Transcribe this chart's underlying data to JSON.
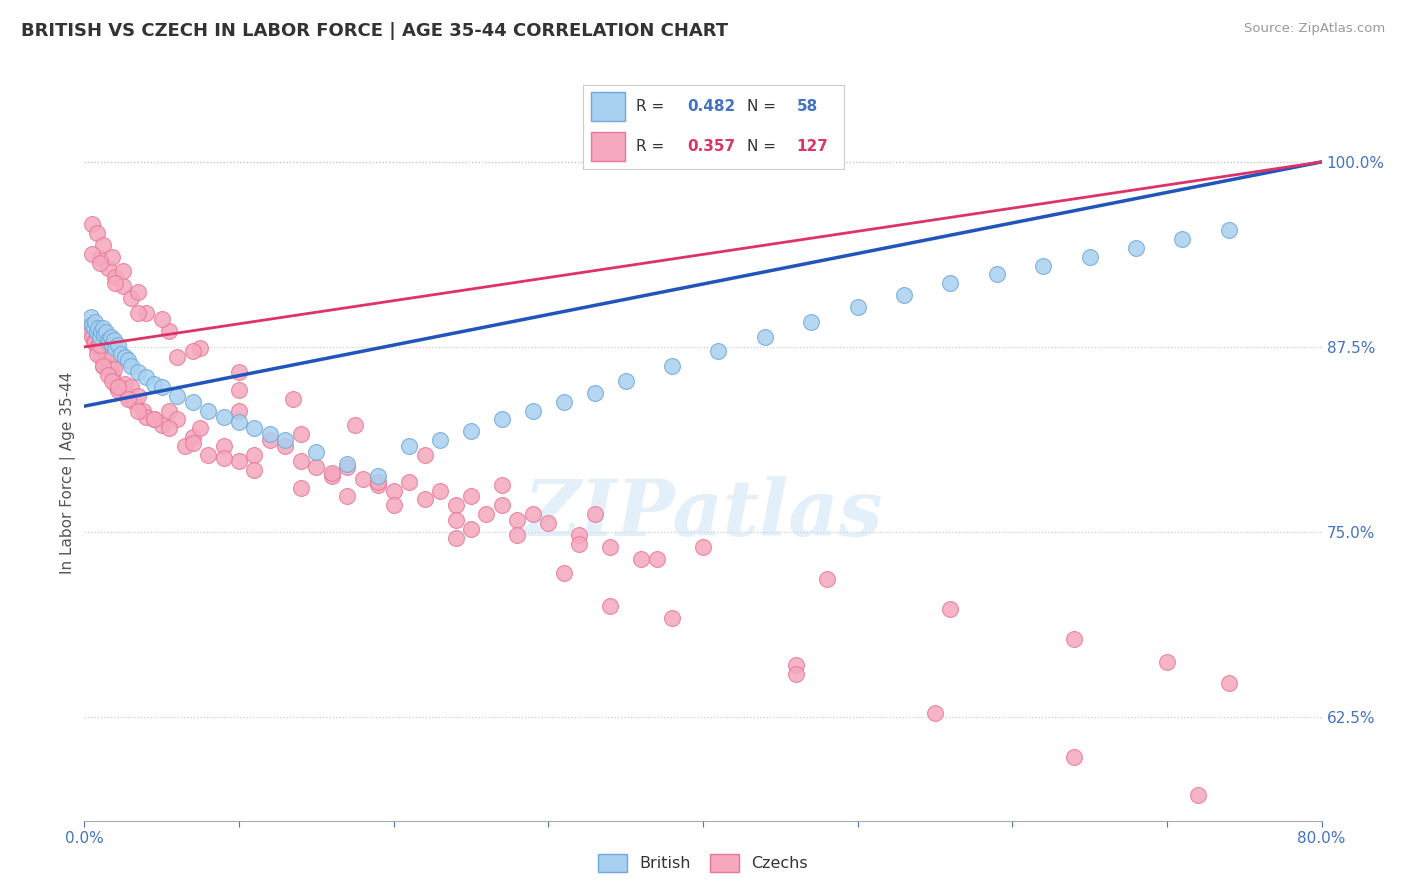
{
  "title": "BRITISH VS CZECH IN LABOR FORCE | AGE 35-44 CORRELATION CHART",
  "source": "Source: ZipAtlas.com",
  "ylabel": "In Labor Force | Age 35-44",
  "xlim": [
    0.0,
    0.8
  ],
  "ylim": [
    0.555,
    1.025
  ],
  "yticks": [
    0.625,
    0.75,
    0.875,
    1.0
  ],
  "yticklabels": [
    "62.5%",
    "75.0%",
    "87.5%",
    "100.0%"
  ],
  "british_color": "#a8d0f0",
  "czech_color": "#f5a8be",
  "british_edge": "#70a8d8",
  "czech_edge": "#e87898",
  "trend_british_color": "#2255bb",
  "trend_czech_color": "#dd3366",
  "watermark": "ZIPatlas",
  "brit_x": [
    0.004,
    0.005,
    0.006,
    0.007,
    0.008,
    0.009,
    0.01,
    0.011,
    0.012,
    0.013,
    0.014,
    0.015,
    0.016,
    0.017,
    0.018,
    0.019,
    0.02,
    0.022,
    0.024,
    0.026,
    0.028,
    0.03,
    0.035,
    0.04,
    0.045,
    0.05,
    0.06,
    0.07,
    0.08,
    0.09,
    0.1,
    0.11,
    0.12,
    0.13,
    0.15,
    0.17,
    0.19,
    0.21,
    0.23,
    0.25,
    0.27,
    0.29,
    0.31,
    0.33,
    0.35,
    0.38,
    0.41,
    0.44,
    0.47,
    0.5,
    0.53,
    0.56,
    0.59,
    0.62,
    0.65,
    0.68,
    0.71,
    0.74
  ],
  "brit_y": [
    0.895,
    0.89,
    0.888,
    0.892,
    0.885,
    0.888,
    0.882,
    0.886,
    0.888,
    0.883,
    0.885,
    0.88,
    0.878,
    0.882,
    0.876,
    0.88,
    0.874,
    0.876,
    0.87,
    0.868,
    0.866,
    0.862,
    0.858,
    0.855,
    0.85,
    0.848,
    0.842,
    0.838,
    0.832,
    0.828,
    0.824,
    0.82,
    0.816,
    0.812,
    0.804,
    0.796,
    0.788,
    0.808,
    0.812,
    0.818,
    0.826,
    0.832,
    0.838,
    0.844,
    0.852,
    0.862,
    0.872,
    0.882,
    0.892,
    0.902,
    0.91,
    0.918,
    0.924,
    0.93,
    0.936,
    0.942,
    0.948,
    0.954
  ],
  "czech_x": [
    0.003,
    0.004,
    0.005,
    0.006,
    0.007,
    0.008,
    0.009,
    0.01,
    0.011,
    0.012,
    0.013,
    0.014,
    0.015,
    0.016,
    0.017,
    0.018,
    0.019,
    0.02,
    0.022,
    0.024,
    0.026,
    0.028,
    0.03,
    0.032,
    0.035,
    0.038,
    0.04,
    0.045,
    0.05,
    0.055,
    0.06,
    0.065,
    0.07,
    0.075,
    0.08,
    0.09,
    0.1,
    0.11,
    0.12,
    0.13,
    0.14,
    0.15,
    0.16,
    0.17,
    0.18,
    0.19,
    0.2,
    0.21,
    0.22,
    0.23,
    0.24,
    0.25,
    0.26,
    0.27,
    0.28,
    0.29,
    0.3,
    0.32,
    0.34,
    0.36,
    0.008,
    0.01,
    0.012,
    0.015,
    0.018,
    0.022,
    0.028,
    0.035,
    0.045,
    0.055,
    0.07,
    0.09,
    0.11,
    0.14,
    0.17,
    0.2,
    0.24,
    0.28,
    0.32,
    0.37,
    0.01,
    0.015,
    0.02,
    0.025,
    0.03,
    0.04,
    0.055,
    0.075,
    0.1,
    0.135,
    0.175,
    0.22,
    0.27,
    0.33,
    0.4,
    0.48,
    0.56,
    0.64,
    0.7,
    0.74,
    0.005,
    0.008,
    0.012,
    0.018,
    0.025,
    0.035,
    0.05,
    0.07,
    0.1,
    0.14,
    0.19,
    0.25,
    0.31,
    0.38,
    0.46,
    0.55,
    0.64,
    0.72,
    0.005,
    0.01,
    0.02,
    0.035,
    0.06,
    0.1,
    0.16,
    0.24,
    0.34,
    0.46
  ],
  "czech_y": [
    0.89,
    0.885,
    0.882,
    0.878,
    0.878,
    0.874,
    0.876,
    0.88,
    0.868,
    0.862,
    0.872,
    0.868,
    0.862,
    0.866,
    0.86,
    0.856,
    0.86,
    0.85,
    0.846,
    0.848,
    0.85,
    0.842,
    0.848,
    0.838,
    0.842,
    0.832,
    0.828,
    0.826,
    0.822,
    0.832,
    0.826,
    0.808,
    0.814,
    0.82,
    0.802,
    0.808,
    0.798,
    0.802,
    0.812,
    0.808,
    0.798,
    0.794,
    0.788,
    0.794,
    0.786,
    0.782,
    0.778,
    0.784,
    0.772,
    0.778,
    0.768,
    0.774,
    0.762,
    0.768,
    0.758,
    0.762,
    0.756,
    0.748,
    0.74,
    0.732,
    0.87,
    0.876,
    0.862,
    0.856,
    0.852,
    0.848,
    0.84,
    0.832,
    0.826,
    0.82,
    0.81,
    0.8,
    0.792,
    0.78,
    0.774,
    0.768,
    0.758,
    0.748,
    0.742,
    0.732,
    0.935,
    0.928,
    0.922,
    0.916,
    0.908,
    0.898,
    0.886,
    0.874,
    0.858,
    0.84,
    0.822,
    0.802,
    0.782,
    0.762,
    0.74,
    0.718,
    0.698,
    0.678,
    0.662,
    0.648,
    0.958,
    0.952,
    0.944,
    0.936,
    0.926,
    0.912,
    0.894,
    0.872,
    0.846,
    0.816,
    0.784,
    0.752,
    0.722,
    0.692,
    0.66,
    0.628,
    0.598,
    0.572,
    0.938,
    0.932,
    0.918,
    0.898,
    0.868,
    0.832,
    0.79,
    0.746,
    0.7,
    0.654
  ]
}
